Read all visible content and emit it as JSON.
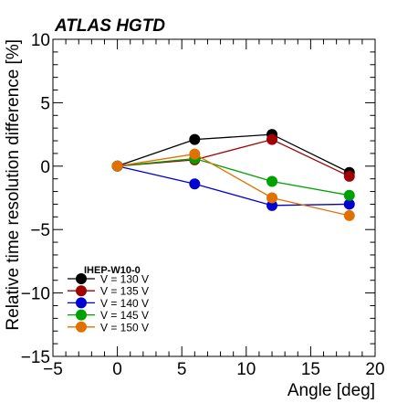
{
  "header": {
    "experiment_label": "ATLAS HGTD"
  },
  "chart_data": {
    "type": "line",
    "title": "ATLAS HGTD",
    "xlabel": "Angle [deg]",
    "ylabel": "Relative time resolution difference [%]",
    "xlim": [
      -5,
      20
    ],
    "ylim": [
      -15,
      10
    ],
    "x_ticks": [
      -5,
      0,
      5,
      10,
      15,
      20
    ],
    "y_ticks": [
      -15,
      -10,
      -5,
      0,
      5,
      10
    ],
    "x": [
      0,
      6,
      12,
      18
    ],
    "legend": {
      "title": "IHEP-W10-0",
      "position": "bottom-left"
    },
    "series": [
      {
        "name": "V = 130 V",
        "color": "#000000",
        "values": [
          0.0,
          2.1,
          2.5,
          -0.5
        ]
      },
      {
        "name": "V = 135 V",
        "color": "#a00000",
        "values": [
          0.0,
          0.5,
          2.1,
          -0.8
        ]
      },
      {
        "name": "V = 140 V",
        "color": "#0000d0",
        "values": [
          0.0,
          -1.4,
          -3.1,
          -3.0
        ]
      },
      {
        "name": "V = 145 V",
        "color": "#00a000",
        "values": [
          0.0,
          0.6,
          -1.2,
          -2.3
        ]
      },
      {
        "name": "V = 150 V",
        "color": "#e07000",
        "values": [
          0.0,
          0.95,
          -2.5,
          -3.9
        ]
      }
    ]
  }
}
